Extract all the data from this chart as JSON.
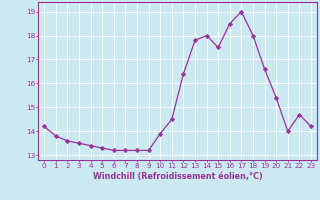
{
  "x": [
    0,
    1,
    2,
    3,
    4,
    5,
    6,
    7,
    8,
    9,
    10,
    11,
    12,
    13,
    14,
    15,
    16,
    17,
    18,
    19,
    20,
    21,
    22,
    23
  ],
  "y": [
    14.2,
    13.8,
    13.6,
    13.5,
    13.4,
    13.3,
    13.2,
    13.2,
    13.2,
    13.2,
    13.9,
    14.5,
    16.4,
    17.8,
    18.0,
    17.5,
    18.5,
    19.0,
    18.0,
    16.6,
    15.4,
    14.0,
    14.7,
    14.2
  ],
  "line_color": "#993399",
  "marker": "D",
  "marker_size": 2.2,
  "bg_color": "#cce8f0",
  "grid_color": "#ffffff",
  "xlabel": "Windchill (Refroidissement éolien,°C)",
  "ylim": [
    12.8,
    19.4
  ],
  "xlim": [
    -0.5,
    23.5
  ],
  "yticks": [
    13,
    14,
    15,
    16,
    17,
    18,
    19
  ],
  "xticks": [
    0,
    1,
    2,
    3,
    4,
    5,
    6,
    7,
    8,
    9,
    10,
    11,
    12,
    13,
    14,
    15,
    16,
    17,
    18,
    19,
    20,
    21,
    22,
    23
  ],
  "tick_color": "#993399",
  "label_color": "#993399",
  "spine_color": "#993399",
  "tick_fontsize": 5.2,
  "xlabel_fontsize": 5.8
}
